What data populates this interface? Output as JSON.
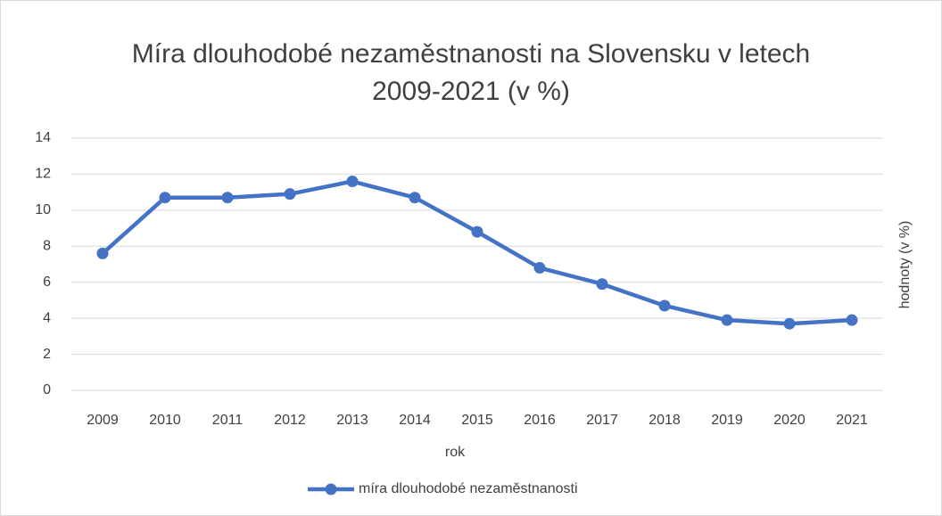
{
  "chart_data": {
    "type": "line",
    "title": "Míra dlouhodobé nezaměstnanosti na Slovensku v letech 2009-2021 (v %)",
    "x_label": "rok",
    "y_label": "hodnoty (v %)",
    "categories": [
      "2009",
      "2010",
      "2011",
      "2012",
      "2013",
      "2014",
      "2015",
      "2016",
      "2017",
      "2018",
      "2019",
      "2020",
      "2021"
    ],
    "series": [
      {
        "name": "míra dlouhodobé nezaměstnanosti",
        "color": "#4472c4",
        "values": [
          7.6,
          10.7,
          10.7,
          10.9,
          11.6,
          10.7,
          8.8,
          6.8,
          5.9,
          4.7,
          3.9,
          3.7,
          3.9
        ]
      }
    ],
    "ylim": [
      0,
      14
    ],
    "yticks": [
      0,
      2,
      4,
      6,
      8,
      10,
      12,
      14
    ],
    "grid": true,
    "legend": "bottom"
  }
}
